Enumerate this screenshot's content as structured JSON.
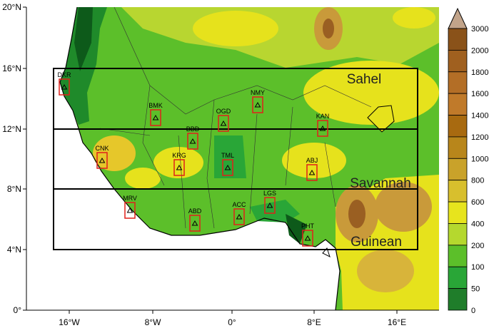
{
  "map": {
    "lat_labels": [
      "20°N",
      "16°N",
      "12°N",
      "8°N",
      "4°N",
      "0°"
    ],
    "lon_labels": [
      "16°W",
      "8°W",
      "0°",
      "8°E",
      "16°E"
    ],
    "regions": [
      "Sahel",
      "Savannah",
      "Guinean"
    ],
    "stations": [
      "DKR",
      "BMK",
      "OGD",
      "NMY",
      "KAN",
      "BBD",
      "CNK",
      "KRG",
      "TML",
      "ABJ",
      "MRV",
      "ABD",
      "ACC",
      "LGS",
      "PHT"
    ],
    "colorbar": {
      "labels": [
        3000,
        2000,
        1800,
        1600,
        1400,
        1200,
        1000,
        800,
        600,
        400,
        200,
        100,
        50,
        0
      ]
    }
  }
}
